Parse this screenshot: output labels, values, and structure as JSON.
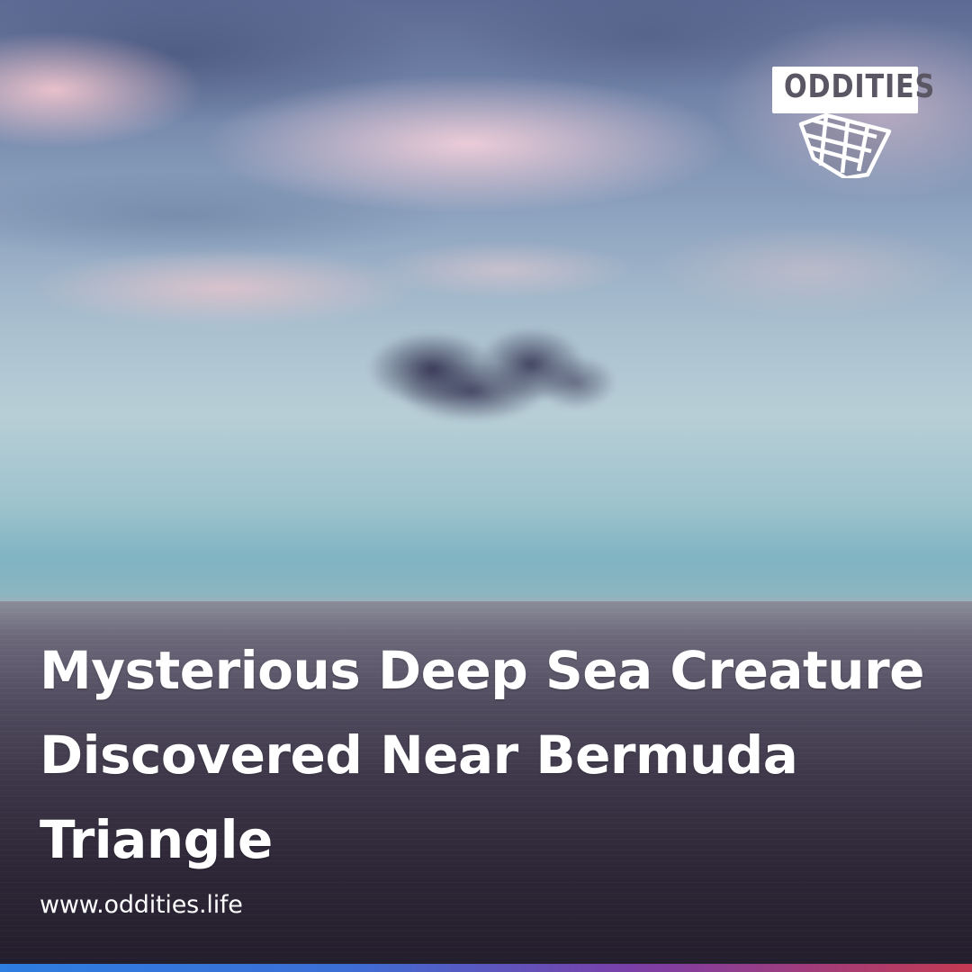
{
  "brand": {
    "logo_text": "ODDITIES",
    "logo_icon": "cube-grid-icon",
    "colors": {
      "logo_text": "#5b5663",
      "logo_background": "#ffffff",
      "bar_start": "#2e7de0",
      "bar_end": "#c43a52"
    }
  },
  "post": {
    "headline_lines": [
      "Mysterious Deep Sea Creature",
      "Discovered Near Bermuda",
      "Triangle"
    ],
    "url": "www.oddities.life"
  },
  "background": {
    "subject": "dark-cloud-over-sea-photo"
  }
}
